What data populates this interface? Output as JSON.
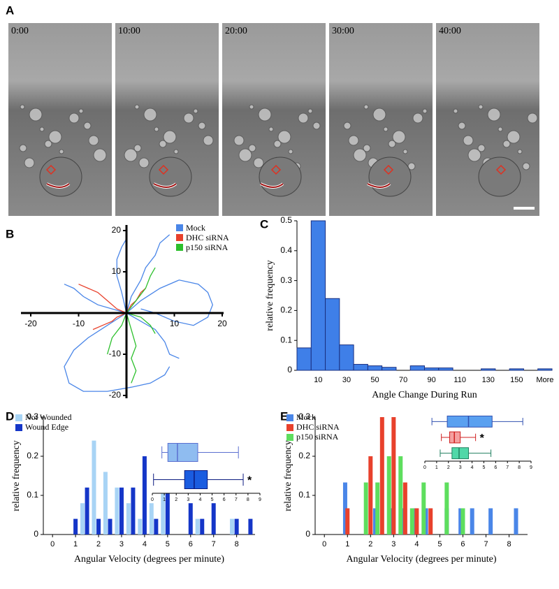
{
  "panel_a": {
    "label": "A",
    "frames": [
      "0:00",
      "10:00",
      "20:00",
      "30:00",
      "40:00"
    ]
  },
  "chart_data": [
    {
      "type": "line",
      "label": "B",
      "xlim": [
        -20,
        20
      ],
      "ylim": [
        -20,
        20
      ],
      "xticks": [
        -20,
        -10,
        10,
        20
      ],
      "yticks": [
        -20,
        -10,
        10,
        20
      ],
      "series": [
        {
          "name": "Mock",
          "color": "#4a86e8",
          "tracks": [
            {
              "x": [
                0,
                3,
                7,
                11,
                15,
                17,
                18,
                17,
                14,
                10,
                6,
                3
              ],
              "y": [
                0,
                3,
                6,
                8,
                7,
                5,
                2,
                -1,
                -3,
                -2,
                0,
                1
              ]
            },
            {
              "x": [
                0,
                -4,
                -8,
                -11,
                -13,
                -12,
                -9,
                -4,
                1,
                5,
                8,
                9
              ],
              "y": [
                0,
                -3,
                -6,
                -9,
                -13,
                -17,
                -19,
                -19,
                -18,
                -17,
                -15,
                -13
              ]
            },
            {
              "x": [
                0,
                1,
                3,
                4,
                6,
                7,
                9
              ],
              "y": [
                0,
                4,
                8,
                11,
                14,
                17,
                19
              ]
            },
            {
              "x": [
                0,
                -3,
                -6,
                -9,
                -11,
                -13
              ],
              "y": [
                0,
                1,
                2,
                4,
                6,
                7
              ]
            },
            {
              "x": [
                0,
                -1,
                -2,
                -2,
                -1,
                0
              ],
              "y": [
                0,
                5,
                9,
                13,
                16,
                18
              ]
            },
            {
              "x": [
                0,
                3,
                6,
                8,
                9,
                11
              ],
              "y": [
                0,
                -2,
                -4,
                -7,
                -10,
                -11
              ]
            }
          ]
        },
        {
          "name": "DHC siRNA",
          "color": "#e8412c",
          "tracks": [
            {
              "x": [
                0,
                -2,
                -4,
                -6,
                -8,
                -10
              ],
              "y": [
                0,
                1,
                3,
                5,
                6,
                7
              ]
            },
            {
              "x": [
                0,
                -2,
                -3,
                -5,
                -7
              ],
              "y": [
                0,
                -1,
                -2,
                -3,
                -4
              ]
            },
            {
              "x": [
                0,
                1,
                2,
                3,
                4
              ],
              "y": [
                0,
                2,
                3,
                5,
                6
              ]
            }
          ]
        },
        {
          "name": "p150 siRNA",
          "color": "#2cc02c",
          "tracks": [
            {
              "x": [
                0,
                1,
                2,
                1,
                2,
                1
              ],
              "y": [
                0,
                -4,
                -8,
                -11,
                -14,
                -17
              ]
            },
            {
              "x": [
                0,
                2,
                4,
                5,
                6
              ],
              "y": [
                0,
                3,
                6,
                9,
                11
              ]
            },
            {
              "x": [
                0,
                -1,
                -3,
                -4
              ],
              "y": [
                0,
                -3,
                -6,
                -10
              ]
            },
            {
              "x": [
                0,
                3,
                5,
                6
              ],
              "y": [
                0,
                -1,
                -3,
                -5
              ]
            }
          ]
        }
      ]
    },
    {
      "type": "bar",
      "label": "C",
      "xlabel": "Angle Change During Run",
      "ylabel": "relative frequency",
      "categories": [
        null,
        "10",
        null,
        "30",
        null,
        "50",
        null,
        "70",
        null,
        "90",
        null,
        "110",
        null,
        "130",
        null,
        "150",
        null,
        "More"
      ],
      "values": [
        0.075,
        0.5,
        0.24,
        0.085,
        0.02,
        0.015,
        0.01,
        0,
        0.015,
        0.008,
        0.008,
        0,
        0,
        0.005,
        0,
        0.005,
        0,
        0.005
      ],
      "color": "#3f7fe8",
      "ylim": [
        0,
        0.5
      ],
      "yticks": [
        0,
        0.1,
        0.2,
        0.3,
        0.4,
        0.5
      ]
    },
    {
      "type": "bar",
      "label": "D",
      "xlabel": "Angular Velocity (degrees per minute)",
      "ylabel": "relative frequency",
      "xlim": [
        -0.4,
        8.8
      ],
      "xticks": [
        0,
        1,
        2,
        3,
        4,
        5,
        6,
        7,
        8
      ],
      "ylim": [
        0,
        0.3
      ],
      "yticks": [
        0,
        0.1,
        0.2,
        0.3
      ],
      "series": [
        {
          "name": "Not Wounded",
          "color": "#a8d4f5",
          "x": [
            1.3,
            1.8,
            2.3,
            2.8,
            3.3,
            3.8,
            4.3,
            4.8,
            6.3,
            7.8
          ],
          "values": [
            0.08,
            0.24,
            0.16,
            0.12,
            0.08,
            0.04,
            0.08,
            0.12,
            0.04,
            0.04
          ]
        },
        {
          "name": "Wound Edge",
          "color": "#1536c8",
          "x": [
            1.0,
            1.5,
            2.0,
            2.5,
            3.0,
            3.5,
            4.0,
            4.5,
            5.0,
            6.0,
            6.5,
            7.0,
            8.0,
            8.6
          ],
          "values": [
            0.04,
            0.12,
            0.04,
            0.04,
            0.12,
            0.12,
            0.2,
            0.04,
            0.12,
            0.08,
            0.04,
            0.08,
            0.04,
            0.04
          ]
        }
      ],
      "inset": {
        "type": "box",
        "xlim": [
          0,
          9
        ],
        "xticks": [
          0,
          1,
          2,
          3,
          4,
          5,
          6,
          7,
          8,
          9
        ],
        "boxes": [
          {
            "min": 0.8,
            "q1": 1.3,
            "median": 2.1,
            "q3": 3.8,
            "max": 7.2,
            "color": "#8fbcf0",
            "edge": "#5a6fd0"
          },
          {
            "min": 0.1,
            "q1": 2.7,
            "median": 3.5,
            "q3": 4.6,
            "max": 7.6,
            "color": "#1a5ce0",
            "edge": "#0a1a80",
            "annotation": "*"
          }
        ]
      }
    },
    {
      "type": "bar",
      "label": "E",
      "xlabel": "Angular Velocity (degrees per minute)",
      "ylabel": "relative frequency",
      "xlim": [
        -0.4,
        8.8
      ],
      "xticks": [
        0,
        1,
        2,
        3,
        4,
        5,
        6,
        7,
        8
      ],
      "ylim": [
        0,
        0.3
      ],
      "yticks": [
        0,
        0.1,
        0.2,
        0.3
      ],
      "series": [
        {
          "name": "Mock",
          "color": "#4a86e8",
          "x": [
            0.9,
            2.2,
            2.9,
            3.4,
            3.9,
            4.4,
            5.3,
            5.9,
            6.4,
            7.2,
            8.3
          ],
          "values": [
            0.133,
            0.067,
            0.067,
            0.067,
            0.067,
            0.067,
            0.067,
            0.067,
            0.067,
            0.067,
            0.067
          ]
        },
        {
          "name": "DHC siRNA",
          "color": "#e8412c",
          "x": [
            1.0,
            2.0,
            2.5,
            3.0,
            3.5,
            4.0,
            4.6
          ],
          "values": [
            0.067,
            0.2,
            0.3,
            0.3,
            0.133,
            0.067,
            0.067
          ]
        },
        {
          "name": "p150 siRNA",
          "color": "#5ede5e",
          "x": [
            1.8,
            2.3,
            2.8,
            3.3,
            3.8,
            4.3,
            5.3,
            6.0
          ],
          "values": [
            0.133,
            0.133,
            0.2,
            0.2,
            0.067,
            0.133,
            0.133,
            0.067
          ]
        }
      ],
      "inset": {
        "type": "box",
        "xlim": [
          0,
          9
        ],
        "xticks": [
          0,
          1,
          2,
          3,
          4,
          5,
          6,
          7,
          8,
          9
        ],
        "boxes": [
          {
            "min": 0.6,
            "q1": 1.9,
            "median": 3.7,
            "q3": 5.7,
            "max": 8.3,
            "color": "#5aa0f0",
            "edge": "#3050b0"
          },
          {
            "min": 1.4,
            "q1": 2.1,
            "median": 2.5,
            "q3": 3.0,
            "max": 4.3,
            "color": "#f4a0a0",
            "edge": "#d02020",
            "annotation": "*"
          },
          {
            "min": 1.3,
            "q1": 2.3,
            "median": 2.9,
            "q3": 3.7,
            "max": 5.6,
            "color": "#50d8a8",
            "edge": "#208060"
          }
        ]
      }
    }
  ]
}
